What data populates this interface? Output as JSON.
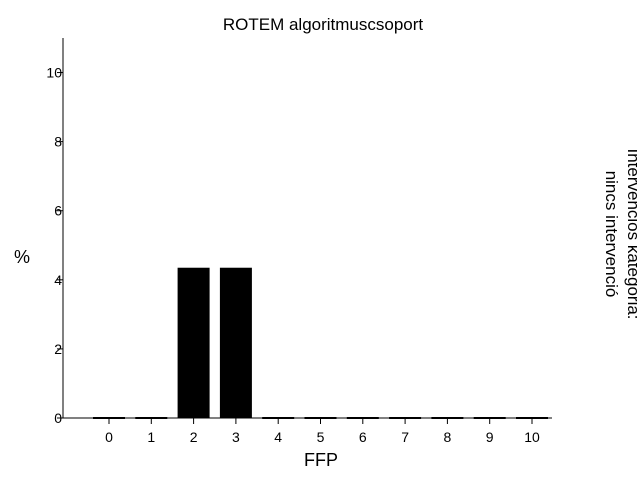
{
  "chart_data": {
    "type": "bar",
    "title": "ROTEM algoritmuscsoport",
    "xlabel": "FFP",
    "ylabel": "%",
    "categories": [
      "0",
      "1",
      "2",
      "3",
      "4",
      "5",
      "6",
      "7",
      "8",
      "9",
      "10"
    ],
    "series": [
      {
        "values": [
          0,
          0,
          4.35,
          4.35,
          0,
          0,
          0,
          0,
          0,
          0,
          0
        ]
      }
    ],
    "ylim": [
      0,
      11
    ],
    "yticks": [
      0,
      2,
      4,
      6,
      8,
      10
    ],
    "ytick_labels": [
      "0",
      "2",
      "4",
      "6",
      "8",
      "10"
    ],
    "grid": false,
    "panel_label": {
      "line1": "Intervenciós kategória:",
      "line2": "nincs intervenció"
    },
    "colors": {
      "bar": "#000000",
      "axis": "#000000",
      "background": "#ffffff"
    }
  }
}
